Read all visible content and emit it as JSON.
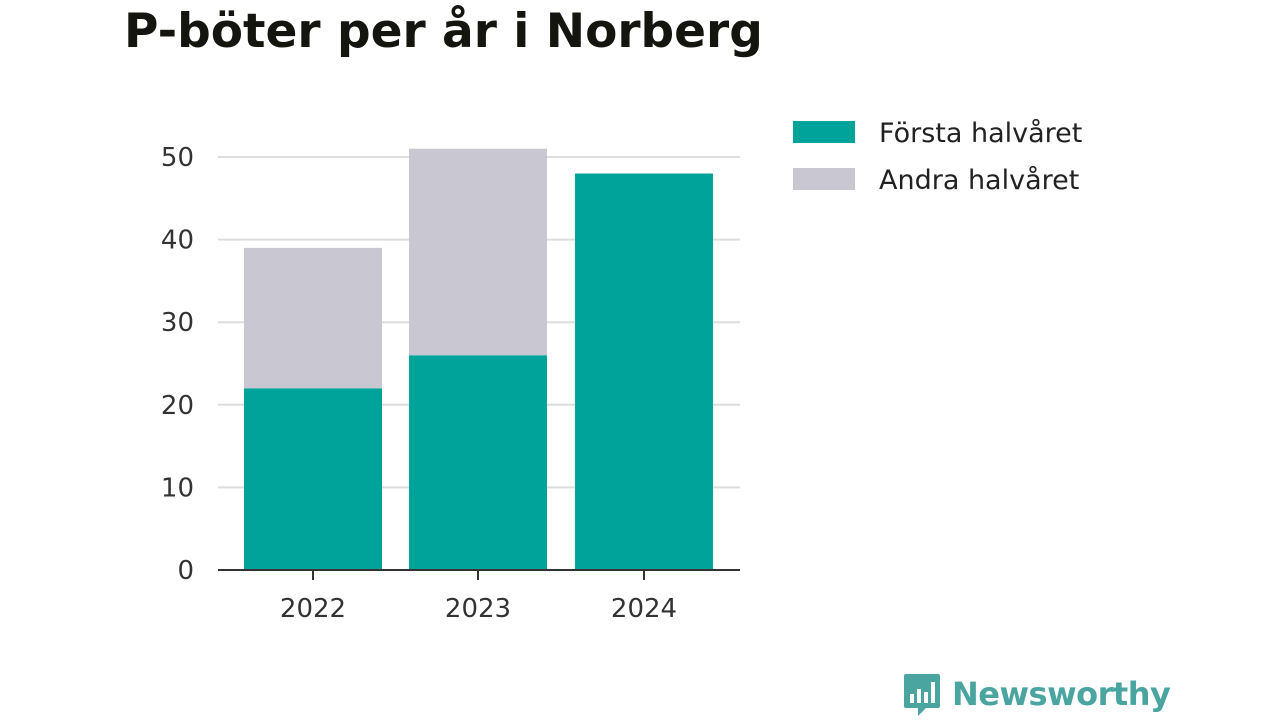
{
  "chart_data": {
    "type": "bar",
    "stacked": true,
    "title": "P-böter per år i Norberg",
    "categories": [
      "2022",
      "2023",
      "2024"
    ],
    "series": [
      {
        "name": "Första halvåret",
        "color": "#00a39a",
        "values": [
          22,
          26,
          48
        ]
      },
      {
        "name": "Andra halvåret",
        "color": "#c8c7d2",
        "values": [
          17,
          25,
          null
        ]
      }
    ],
    "ylim": [
      0,
      50
    ],
    "yticks": [
      0,
      10,
      20,
      30,
      40,
      50
    ],
    "grid": true,
    "legend_position": "top-right"
  },
  "brand": {
    "name": "Newsworthy",
    "icon": "newsworthy-logo-icon",
    "color": "#4aa4a0"
  }
}
